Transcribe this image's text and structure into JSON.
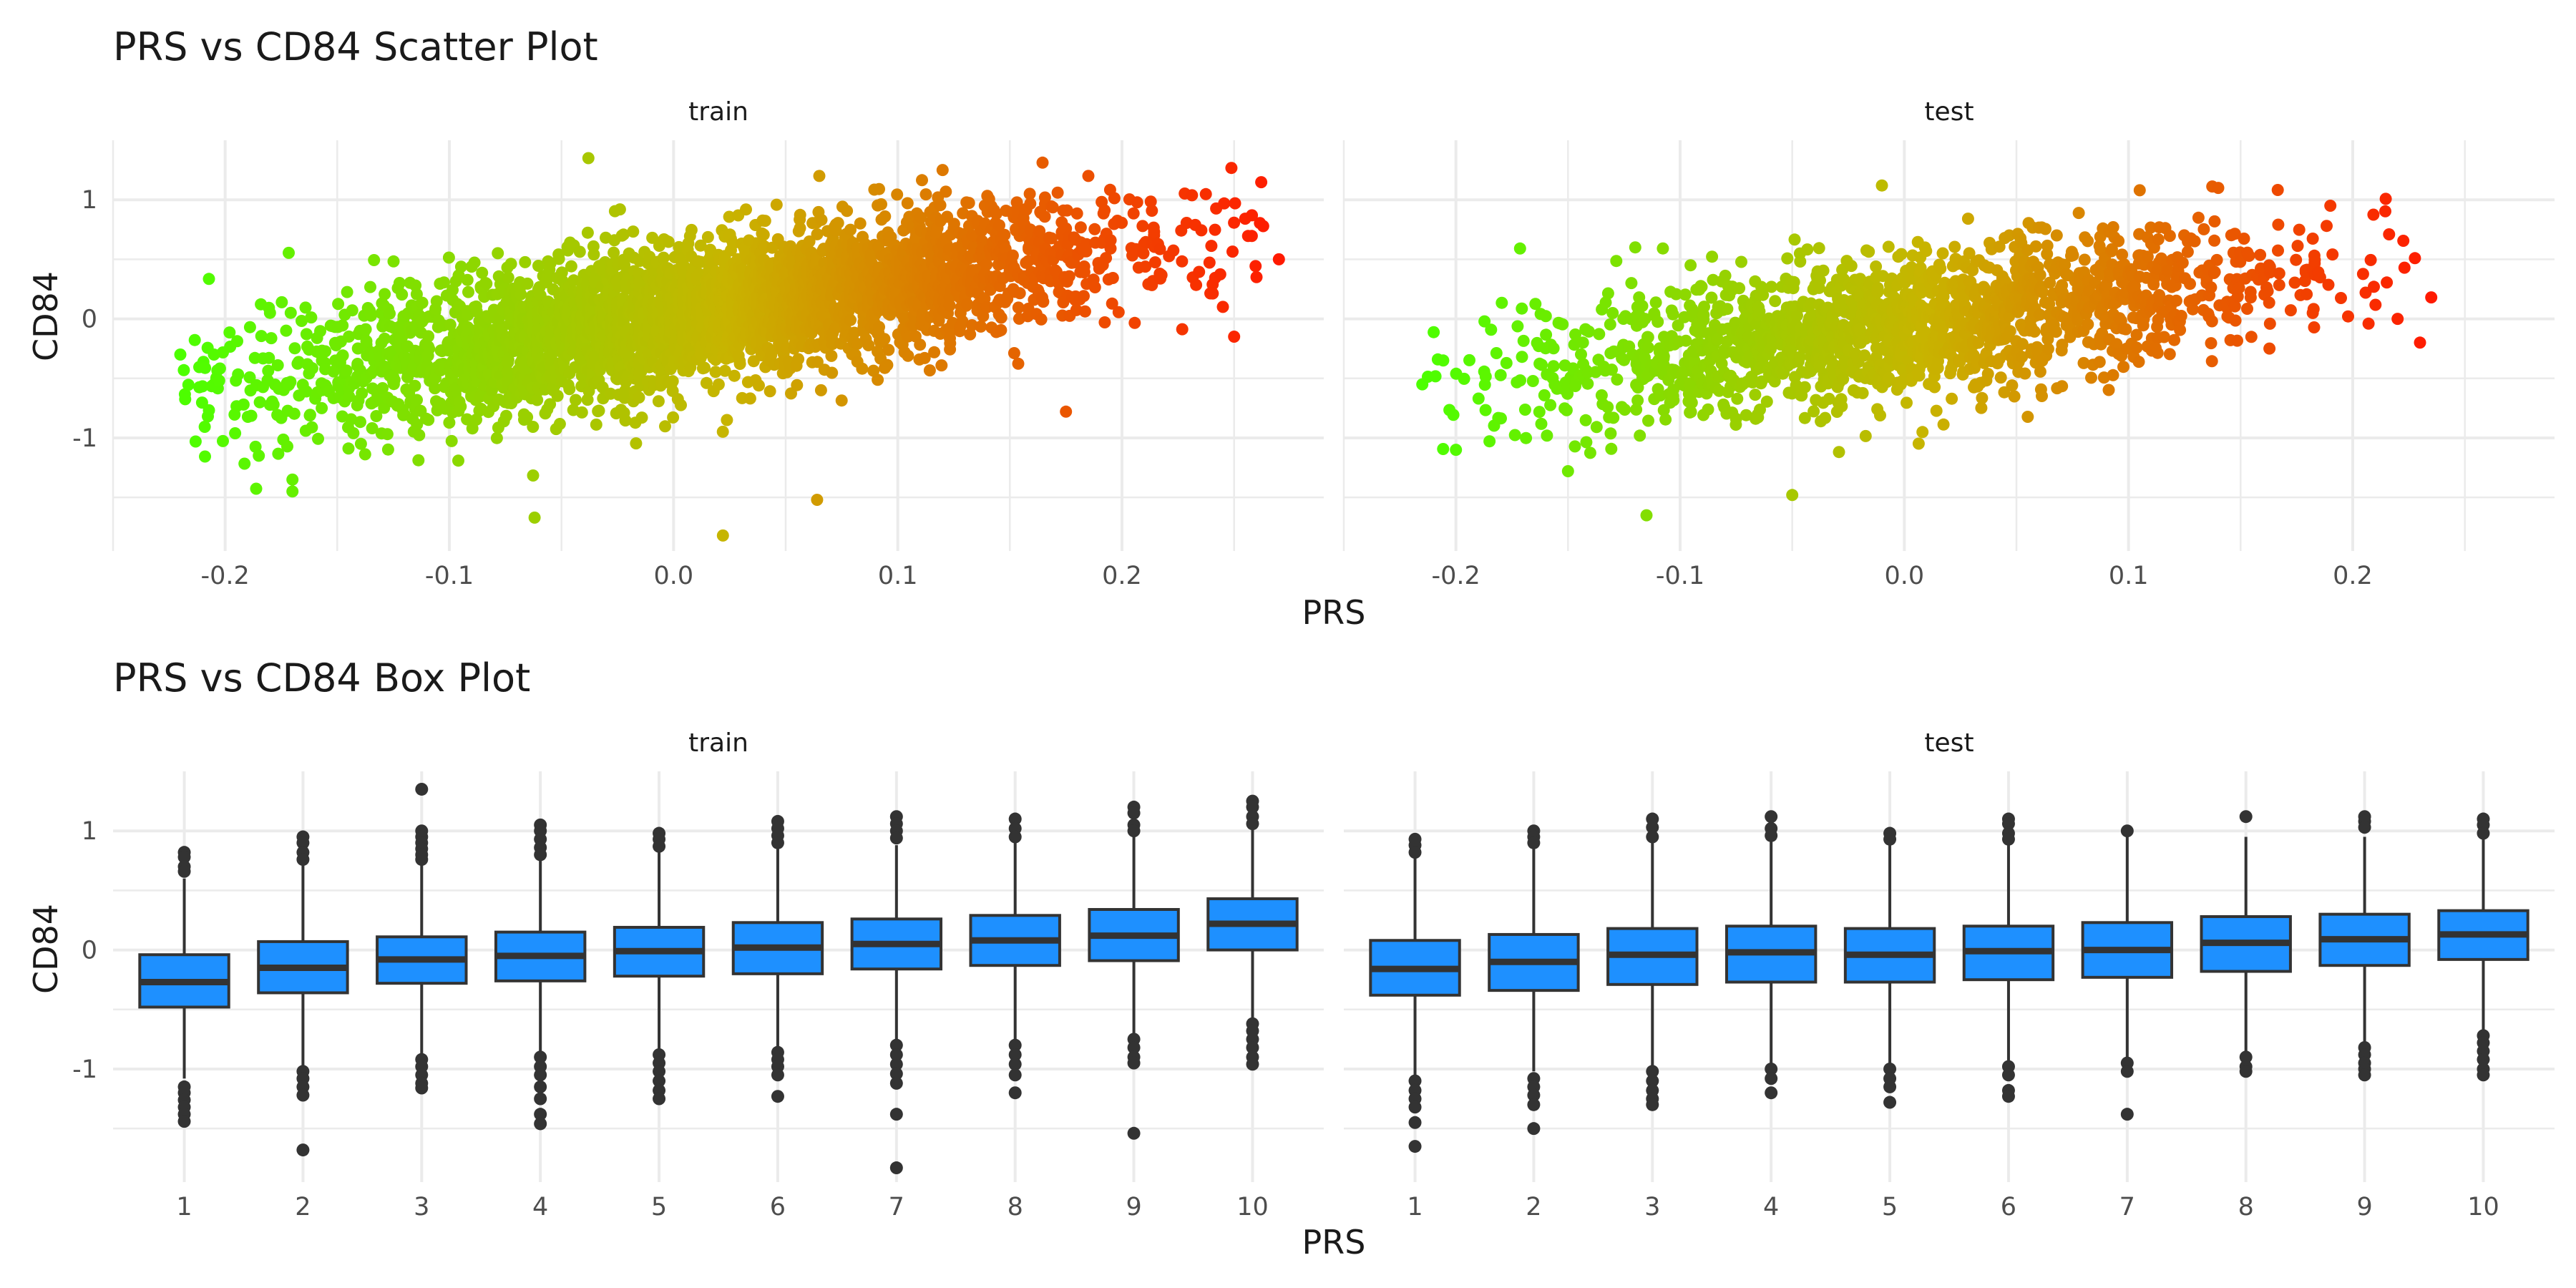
{
  "colors": {
    "box_fill": "#1e90ff",
    "box_line": "#333333",
    "grid": "#ebebeb",
    "scatter_low": "#4cff00",
    "scatter_mid": "#c8b400",
    "scatter_high": "#ff1a00"
  },
  "chart_data": [
    {
      "type": "scatter",
      "title": "PRS vs CD84 Scatter Plot",
      "xlabel": "PRS",
      "ylabel": "CD84",
      "xlim": [
        -0.25,
        0.29
      ],
      "ylim": [
        -1.95,
        1.5
      ],
      "xticks": [
        "-0.2",
        "-0.1",
        "0.0",
        "0.1",
        "0.2"
      ],
      "yticks": [
        "-1",
        "0",
        "1"
      ],
      "color_gradient": [
        "#4cff00",
        "#c8b400",
        "#ff1a00"
      ],
      "panels": [
        {
          "name": "train",
          "n_points": 10000,
          "x_range": [
            -0.22,
            0.27
          ],
          "trend": {
            "slope": 3.0,
            "intercept": 0.0,
            "sd": 0.3
          },
          "points": [
            {
              "x": -0.22,
              "y": -0.3
            },
            {
              "x": -0.205,
              "y": -0.3
            },
            {
              "x": -0.205,
              "y": -0.55
            },
            {
              "x": -0.185,
              "y": -1.15
            },
            {
              "x": -0.17,
              "y": -1.45
            },
            {
              "x": -0.17,
              "y": -1.35
            },
            {
              "x": -0.18,
              "y": 0.05
            },
            {
              "x": -0.062,
              "y": -1.67
            },
            {
              "x": 0.022,
              "y": -1.82
            },
            {
              "x": 0.064,
              "y": -1.52
            },
            {
              "x": -0.038,
              "y": 1.35
            },
            {
              "x": 0.065,
              "y": 1.2
            },
            {
              "x": 0.12,
              "y": 1.25
            },
            {
              "x": 0.185,
              "y": 1.2
            },
            {
              "x": 0.27,
              "y": 0.5
            },
            {
              "x": 0.26,
              "y": 0.35
            },
            {
              "x": 0.245,
              "y": 0.1
            },
            {
              "x": 0.175,
              "y": -0.78
            },
            {
              "x": 0.25,
              "y": -0.15
            }
          ]
        },
        {
          "name": "test",
          "n_points": 5000,
          "x_range": [
            -0.215,
            0.235
          ],
          "trend": {
            "slope": 2.5,
            "intercept": -0.05,
            "sd": 0.3
          },
          "points": [
            {
              "x": -0.215,
              "y": -0.55
            },
            {
              "x": -0.2,
              "y": -1.1
            },
            {
              "x": -0.115,
              "y": -1.65
            },
            {
              "x": -0.15,
              "y": -1.28
            },
            {
              "x": -0.05,
              "y": -1.48
            },
            {
              "x": 0.235,
              "y": 0.18
            },
            {
              "x": 0.23,
              "y": -0.2
            },
            {
              "x": 0.22,
              "y": 0.0
            },
            {
              "x": 0.14,
              "y": 1.1
            },
            {
              "x": 0.105,
              "y": 1.08
            },
            {
              "x": -0.01,
              "y": 1.12
            },
            {
              "x": 0.19,
              "y": 0.95
            },
            {
              "x": -0.12,
              "y": 0.6
            }
          ]
        }
      ]
    },
    {
      "type": "box",
      "title": "PRS vs CD84 Box Plot",
      "xlabel": "PRS",
      "ylabel": "CD84",
      "ylim": [
        -1.95,
        1.5
      ],
      "yticks": [
        "-1",
        "0",
        "1"
      ],
      "categories": [
        "1",
        "2",
        "3",
        "4",
        "5",
        "6",
        "7",
        "8",
        "9",
        "10"
      ],
      "panels": [
        {
          "name": "train",
          "boxes": [
            {
              "whislo": -1.08,
              "q1": -0.48,
              "med": -0.27,
              "q3": -0.04,
              "whishi": 0.6,
              "outliers": [
                0.82,
                0.78,
                0.7,
                0.66,
                -1.15,
                -1.2,
                -1.26,
                -1.32,
                -1.38,
                -1.44
              ]
            },
            {
              "whislo": -0.98,
              "q1": -0.36,
              "med": -0.15,
              "q3": 0.07,
              "whishi": 0.72,
              "outliers": [
                0.95,
                0.9,
                0.82,
                0.76,
                -1.02,
                -1.08,
                -1.15,
                -1.22,
                -1.68
              ]
            },
            {
              "whislo": -0.9,
              "q1": -0.28,
              "med": -0.08,
              "q3": 0.11,
              "whishi": 0.72,
              "outliers": [
                1.35,
                1.0,
                0.95,
                0.9,
                0.85,
                0.8,
                0.76,
                -0.92,
                -0.98,
                -1.05,
                -1.12,
                -1.16
              ]
            },
            {
              "whislo": -0.88,
              "q1": -0.26,
              "med": -0.05,
              "q3": 0.15,
              "whishi": 0.78,
              "outliers": [
                1.05,
                1.0,
                0.93,
                0.86,
                0.8,
                -0.9,
                -0.98,
                -1.05,
                -1.15,
                -1.25,
                -1.38,
                -1.46
              ]
            },
            {
              "whislo": -0.85,
              "q1": -0.22,
              "med": -0.01,
              "q3": 0.19,
              "whishi": 0.82,
              "outliers": [
                0.98,
                0.93,
                0.87,
                -0.88,
                -0.95,
                -1.02,
                -1.1,
                -1.18,
                -1.25
              ]
            },
            {
              "whislo": -0.82,
              "q1": -0.2,
              "med": 0.02,
              "q3": 0.23,
              "whishi": 0.85,
              "outliers": [
                1.08,
                1.02,
                0.96,
                0.9,
                -0.86,
                -0.92,
                -0.98,
                -1.05,
                -1.23
              ]
            },
            {
              "whislo": -0.78,
              "q1": -0.16,
              "med": 0.05,
              "q3": 0.26,
              "whishi": 0.88,
              "outliers": [
                1.12,
                1.06,
                1.0,
                0.94,
                -0.8,
                -0.88,
                -0.96,
                -1.04,
                -1.12,
                -1.38,
                -1.83
              ]
            },
            {
              "whislo": -0.76,
              "q1": -0.13,
              "med": 0.08,
              "q3": 0.29,
              "whishi": 0.9,
              "outliers": [
                1.1,
                1.02,
                0.95,
                -0.8,
                -0.88,
                -0.96,
                -1.05,
                -1.2
              ]
            },
            {
              "whislo": -0.7,
              "q1": -0.09,
              "med": 0.12,
              "q3": 0.34,
              "whishi": 0.95,
              "outliers": [
                1.2,
                1.15,
                1.05,
                1.0,
                -0.75,
                -0.82,
                -0.9,
                -0.95,
                -1.54
              ]
            },
            {
              "whislo": -0.6,
              "q1": 0.0,
              "med": 0.22,
              "q3": 0.43,
              "whishi": 1.03,
              "outliers": [
                1.25,
                1.2,
                1.12,
                1.06,
                -0.62,
                -0.68,
                -0.75,
                -0.82,
                -0.9,
                -0.96
              ]
            }
          ]
        },
        {
          "name": "test",
          "boxes": [
            {
              "whislo": -1.05,
              "q1": -0.38,
              "med": -0.16,
              "q3": 0.08,
              "whishi": 0.78,
              "outliers": [
                0.93,
                0.88,
                0.82,
                -1.1,
                -1.18,
                -1.25,
                -1.32,
                -1.45,
                -1.65
              ]
            },
            {
              "whislo": -1.02,
              "q1": -0.34,
              "med": -0.1,
              "q3": 0.13,
              "whishi": 0.85,
              "outliers": [
                1.0,
                0.95,
                0.9,
                -1.08,
                -1.15,
                -1.22,
                -1.3,
                -1.5
              ]
            },
            {
              "whislo": -0.98,
              "q1": -0.29,
              "med": -0.04,
              "q3": 0.18,
              "whishi": 0.9,
              "outliers": [
                1.1,
                1.03,
                0.95,
                -1.02,
                -1.1,
                -1.18,
                -1.25,
                -1.3
              ]
            },
            {
              "whislo": -0.95,
              "q1": -0.27,
              "med": -0.02,
              "q3": 0.2,
              "whishi": 0.92,
              "outliers": [
                1.12,
                1.02,
                0.96,
                -1.0,
                -1.08,
                -1.2
              ]
            },
            {
              "whislo": -0.95,
              "q1": -0.27,
              "med": -0.04,
              "q3": 0.18,
              "whishi": 0.9,
              "outliers": [
                0.98,
                0.93,
                -1.0,
                -1.08,
                -1.15,
                -1.28
              ]
            },
            {
              "whislo": -0.93,
              "q1": -0.25,
              "med": -0.01,
              "q3": 0.2,
              "whishi": 0.92,
              "outliers": [
                1.1,
                1.06,
                0.98,
                0.93,
                -0.98,
                -1.05,
                -1.18,
                -1.23
              ]
            },
            {
              "whislo": -0.92,
              "q1": -0.23,
              "med": 0.0,
              "q3": 0.23,
              "whishi": 0.95,
              "outliers": [
                1.0,
                -0.95,
                -1.02,
                -1.38
              ]
            },
            {
              "whislo": -0.85,
              "q1": -0.18,
              "med": 0.06,
              "q3": 0.28,
              "whishi": 0.95,
              "outliers": [
                1.12,
                -0.9,
                -0.98,
                -1.02
              ]
            },
            {
              "whislo": -0.78,
              "q1": -0.13,
              "med": 0.09,
              "q3": 0.3,
              "whishi": 0.95,
              "outliers": [
                1.12,
                1.08,
                1.03,
                -0.82,
                -0.88,
                -0.95,
                -1.0,
                -1.05
              ]
            },
            {
              "whislo": -0.68,
              "q1": -0.08,
              "med": 0.13,
              "q3": 0.33,
              "whishi": 0.95,
              "outliers": [
                1.1,
                1.05,
                0.98,
                -0.72,
                -0.78,
                -0.85,
                -0.92,
                -1.0,
                -1.05
              ]
            }
          ]
        }
      ]
    }
  ]
}
